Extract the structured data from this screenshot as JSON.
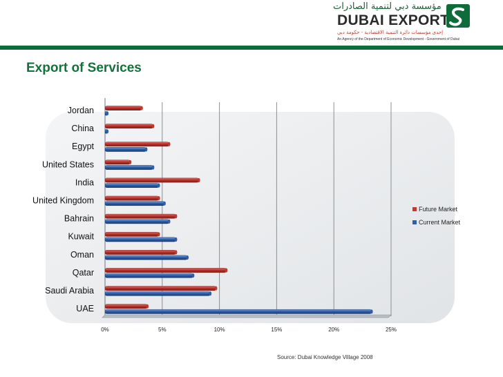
{
  "brand": {
    "arabic_name": "مؤسسة دبي لتنمية الصادرات",
    "name": "DUBAI EXPORTS",
    "agency_arabic": "إحدى مؤسسات دائرة التنمية الاقتصادية - حكومة دبي",
    "agency_english": "An Agency of the Department of Economic Development - Government of Dubai",
    "green": "#0e6b3a"
  },
  "slide": {
    "title": "Export of Services",
    "source": "Source: Dubai Knowledge Village 2008"
  },
  "chart_data": {
    "type": "bar",
    "orientation": "horizontal",
    "categories": [
      "Jordan",
      "China",
      "Egypt",
      "United States",
      "India",
      "United Kingdom",
      "Bahrain",
      "Kuwait",
      "Oman",
      "Qatar",
      "Saudi Arabia",
      "UAE"
    ],
    "series": [
      {
        "name": "Future Market",
        "color": "#c0392b",
        "values": [
          3.2,
          4.2,
          5.6,
          2.2,
          8.2,
          4.7,
          6.2,
          4.7,
          6.2,
          10.6,
          9.7,
          3.7
        ]
      },
      {
        "name": "Current Market",
        "color": "#2f5fa8",
        "values": [
          0.2,
          0.2,
          3.6,
          4.2,
          4.7,
          5.2,
          5.6,
          6.2,
          7.2,
          7.7,
          9.2,
          23.3
        ]
      }
    ],
    "xlim": [
      0,
      25
    ],
    "xticks": [
      "0%",
      "5%",
      "10%",
      "15%",
      "20%",
      "25%"
    ],
    "grid": true,
    "legend": "right"
  }
}
